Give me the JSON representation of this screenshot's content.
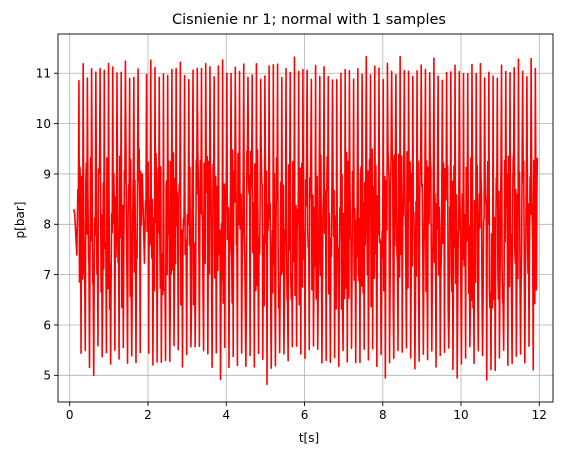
{
  "chart_data": {
    "type": "line",
    "title": "Cisnienie nr 1; normal with 1 samples",
    "xlabel": "t[s]",
    "ylabel": "p[bar]",
    "xlim": [
      -0.3,
      12.35
    ],
    "ylim": [
      4.47,
      11.78
    ],
    "xticks": [
      0,
      2,
      4,
      6,
      8,
      10,
      12
    ],
    "yticks": [
      5,
      6,
      7,
      8,
      9,
      10,
      11
    ],
    "grid": true,
    "legend": "none",
    "series": [
      {
        "color": "#ff0000",
        "x_range": [
          0.1,
          11.95
        ],
        "oscillation_period": 0.108,
        "typical_max": 11.2,
        "typical_min": 5.1,
        "overall_max": 11.33,
        "overall_min": 4.82,
        "dense_band": [
          6.3,
          9.5
        ],
        "low_amplitude_segments": [
          {
            "x": [
              0.1,
              0.12
            ],
            "min": 7.3,
            "max": 8.4
          },
          {
            "x": [
              1.78,
              1.86
            ],
            "min": 7.15,
            "max": 9.0
          },
          {
            "x": [
              6.82,
              6.9
            ],
            "min": 6.6,
            "max": 10.2
          }
        ],
        "annotated_extremes": [
          {
            "x": 0.17,
            "y": 11.17
          },
          {
            "x": 0.31,
            "y": 11.19
          },
          {
            "x": 0.55,
            "y": 11.09
          },
          {
            "x": 1.42,
            "y": 11.24
          },
          {
            "x": 2.02,
            "y": 11.26
          },
          {
            "x": 2.12,
            "y": 11.22
          },
          {
            "x": 2.8,
            "y": 11.22
          },
          {
            "x": 3.91,
            "y": 11.26
          },
          {
            "x": 5.72,
            "y": 11.32
          },
          {
            "x": 7.53,
            "y": 11.33
          },
          {
            "x": 8.41,
            "y": 11.33
          },
          {
            "x": 9.29,
            "y": 11.3
          },
          {
            "x": 11.5,
            "y": 11.28
          },
          {
            "x": 11.84,
            "y": 11.29
          },
          {
            "x": 5.02,
            "y": 4.82
          },
          {
            "x": 3.8,
            "y": 4.92
          },
          {
            "x": 8.1,
            "y": 4.95
          },
          {
            "x": 10.67,
            "y": 4.91
          },
          {
            "x": 9.93,
            "y": 4.95
          },
          {
            "x": 0.66,
            "y": 5.0
          }
        ]
      }
    ]
  }
}
